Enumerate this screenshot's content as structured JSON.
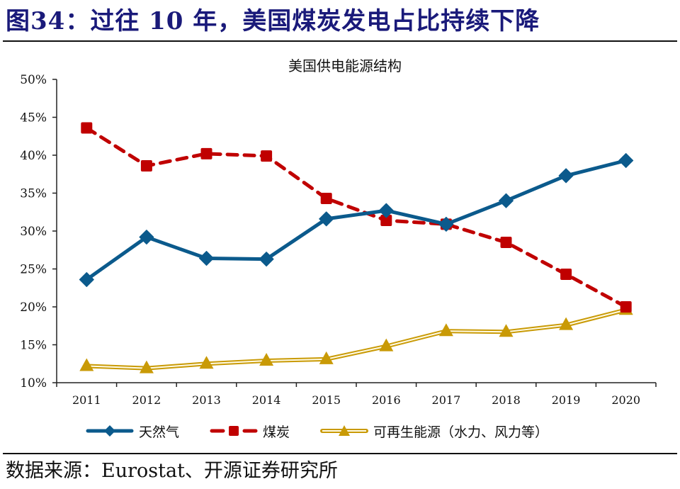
{
  "figure": {
    "title": "图34：过往 10 年，美国煤炭发电占比持续下降",
    "source": "数据来源：Eurostat、开源证券研究所"
  },
  "colors": {
    "title": "#1a1a7a",
    "gas": "#0b5a8c",
    "coal": "#c00000",
    "renewables": "#c99a06"
  },
  "chart_data": {
    "type": "line",
    "title": "美国供电能源结构",
    "xlabel": "",
    "ylabel": "",
    "categories": [
      "2011",
      "2012",
      "2013",
      "2014",
      "2015",
      "2016",
      "2017",
      "2018",
      "2019",
      "2020"
    ],
    "ylim": [
      0.1,
      0.5
    ],
    "yticks": [
      0.1,
      0.15,
      0.2,
      0.25,
      0.3,
      0.35,
      0.4,
      0.45,
      0.5
    ],
    "ytick_labels": [
      "10%",
      "15%",
      "20%",
      "25%",
      "30%",
      "35%",
      "40%",
      "45%",
      "50%"
    ],
    "grid": false,
    "legend_position": "bottom",
    "series": [
      {
        "name": "天然气",
        "key": "gas",
        "style": "solid",
        "marker": "diamond",
        "values": [
          0.236,
          0.292,
          0.264,
          0.263,
          0.316,
          0.327,
          0.309,
          0.34,
          0.373,
          0.393
        ]
      },
      {
        "name": "煤炭",
        "key": "coal",
        "style": "dashed",
        "marker": "square",
        "values": [
          0.436,
          0.386,
          0.402,
          0.399,
          0.343,
          0.314,
          0.309,
          0.285,
          0.243,
          0.2
        ]
      },
      {
        "name": "可再生能源（水力、风力等）",
        "key": "renewables",
        "style": "double",
        "marker": "triangle",
        "values": [
          0.122,
          0.119,
          0.125,
          0.129,
          0.131,
          0.148,
          0.168,
          0.167,
          0.176,
          0.196
        ]
      }
    ]
  }
}
